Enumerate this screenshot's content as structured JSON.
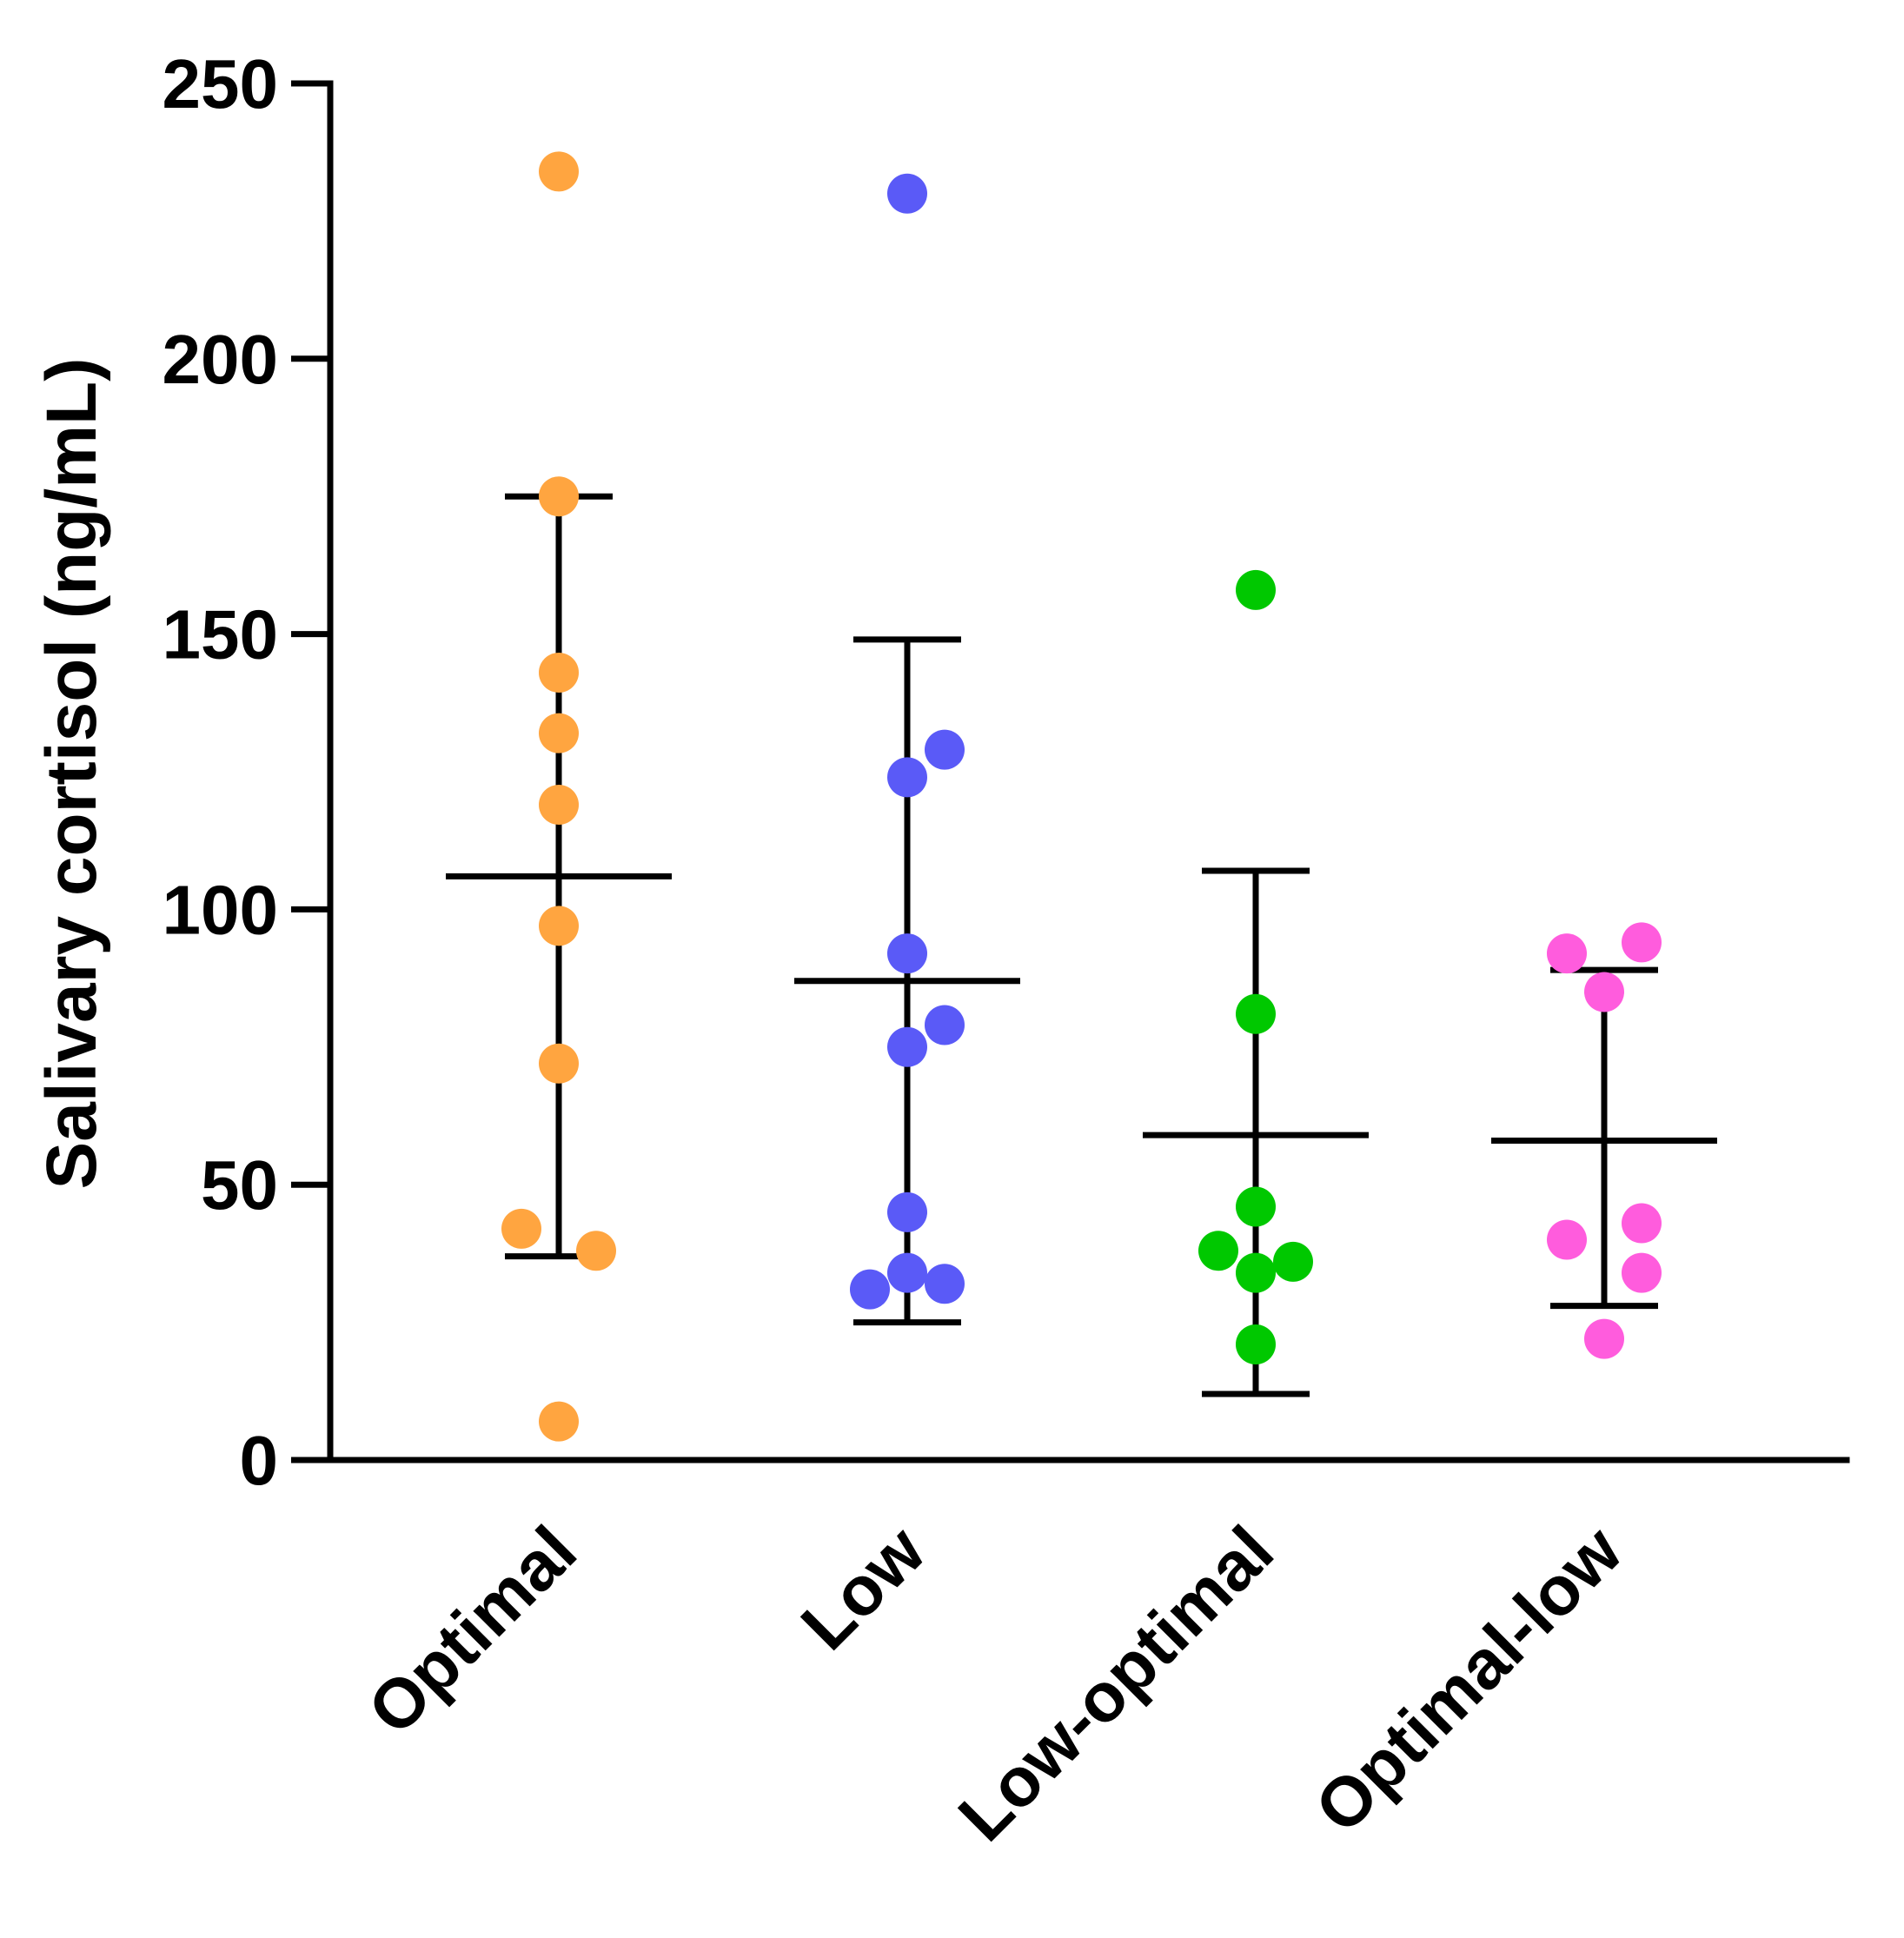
{
  "chart_data": {
    "type": "scatter",
    "ylabel": "Salivary cortisol (ng/mL)",
    "xlabel": "",
    "ylim": [
      0,
      250
    ],
    "yticks": [
      0,
      50,
      100,
      150,
      200,
      250
    ],
    "grid": false,
    "categories": [
      "Optimal",
      "Low",
      "Low-optimal",
      "Optimal-low"
    ],
    "colors": {
      "Optimal": "#FFA540",
      "Low": "#5A5AF7",
      "Low-optimal": "#00C800",
      "Optimal-low": "#FF5CDD"
    },
    "series": [
      {
        "category": "Optimal",
        "points": [
          {
            "jitter": 0,
            "y": 234
          },
          {
            "jitter": 0,
            "y": 175
          },
          {
            "jitter": 0,
            "y": 143
          },
          {
            "jitter": 0,
            "y": 132
          },
          {
            "jitter": 0,
            "y": 119
          },
          {
            "jitter": 0,
            "y": 97
          },
          {
            "jitter": 0,
            "y": 72
          },
          {
            "jitter": -1,
            "y": 42
          },
          {
            "jitter": 1,
            "y": 38
          },
          {
            "jitter": 0,
            "y": 7
          }
        ],
        "mean": 106,
        "upper": 175,
        "lower": 37
      },
      {
        "category": "Low",
        "points": [
          {
            "jitter": 0,
            "y": 230
          },
          {
            "jitter": 1,
            "y": 129
          },
          {
            "jitter": 0,
            "y": 124
          },
          {
            "jitter": 0,
            "y": 92
          },
          {
            "jitter": 1,
            "y": 79
          },
          {
            "jitter": 0,
            "y": 75
          },
          {
            "jitter": 0,
            "y": 45
          },
          {
            "jitter": 0,
            "y": 34
          },
          {
            "jitter": 1,
            "y": 32
          },
          {
            "jitter": -1,
            "y": 31
          }
        ],
        "mean": 87,
        "upper": 149,
        "lower": 25
      },
      {
        "category": "Low-optimal",
        "points": [
          {
            "jitter": 0,
            "y": 158
          },
          {
            "jitter": 0,
            "y": 81
          },
          {
            "jitter": 0,
            "y": 46
          },
          {
            "jitter": -1,
            "y": 38
          },
          {
            "jitter": 1,
            "y": 36
          },
          {
            "jitter": 0,
            "y": 34
          },
          {
            "jitter": 0,
            "y": 21
          }
        ],
        "mean": 59,
        "upper": 107,
        "lower": 12
      },
      {
        "category": "Optimal-low",
        "points": [
          {
            "jitter": 1,
            "y": 94
          },
          {
            "jitter": -1,
            "y": 92
          },
          {
            "jitter": 0,
            "y": 85
          },
          {
            "jitter": 1,
            "y": 43
          },
          {
            "jitter": -1,
            "y": 40
          },
          {
            "jitter": 1,
            "y": 34
          },
          {
            "jitter": 0,
            "y": 22
          }
        ],
        "mean": 58,
        "upper": 89,
        "lower": 28
      }
    ]
  }
}
